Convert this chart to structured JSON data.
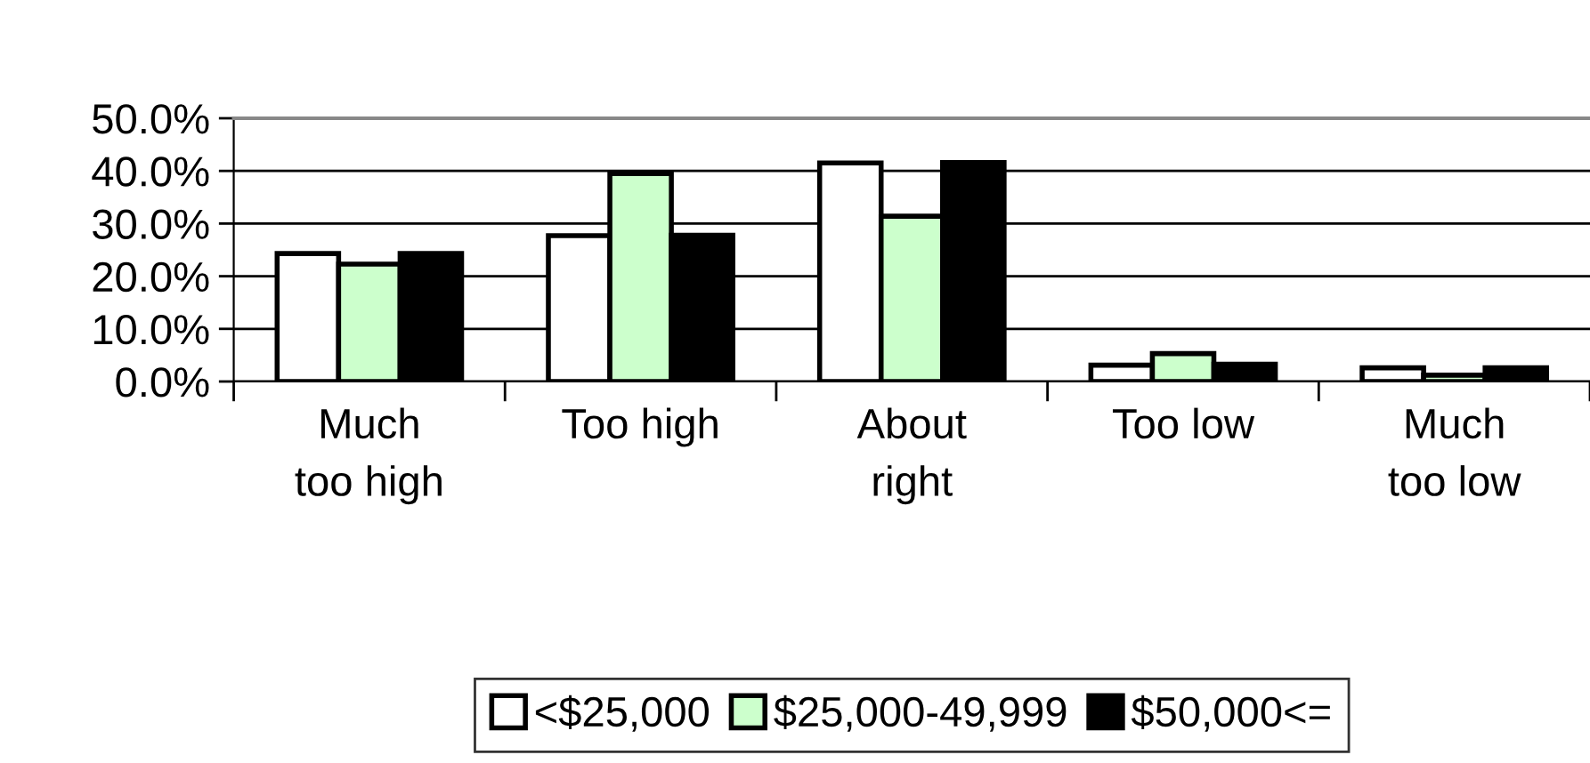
{
  "chart_data": {
    "type": "bar",
    "categories": [
      "Much too high",
      "Too high",
      "About right",
      "Too low",
      "Much too low"
    ],
    "series": [
      {
        "name": "<$25,000",
        "color": "#ffffff",
        "values": [
          24.3,
          27.7,
          41.5,
          3.1,
          2.6
        ]
      },
      {
        "name": "$25,000-49,999",
        "color": "#ccffcc",
        "values": [
          22.3,
          39.5,
          31.4,
          5.3,
          1.2
        ]
      },
      {
        "name": "$50,000<=",
        "color": "#000000",
        "values": [
          24.3,
          27.8,
          41.6,
          3.3,
          2.6
        ]
      }
    ],
    "ylim": [
      0,
      50
    ],
    "yticks": [
      {
        "value": 0,
        "label": "0.0%"
      },
      {
        "value": 10,
        "label": "10.0%"
      },
      {
        "value": 20,
        "label": "20.0%"
      },
      {
        "value": 30,
        "label": "30.0%"
      },
      {
        "value": 40,
        "label": "40.0%"
      },
      {
        "value": 50,
        "label": "50.0%"
      }
    ],
    "grid": "y",
    "legend": "bottom"
  }
}
